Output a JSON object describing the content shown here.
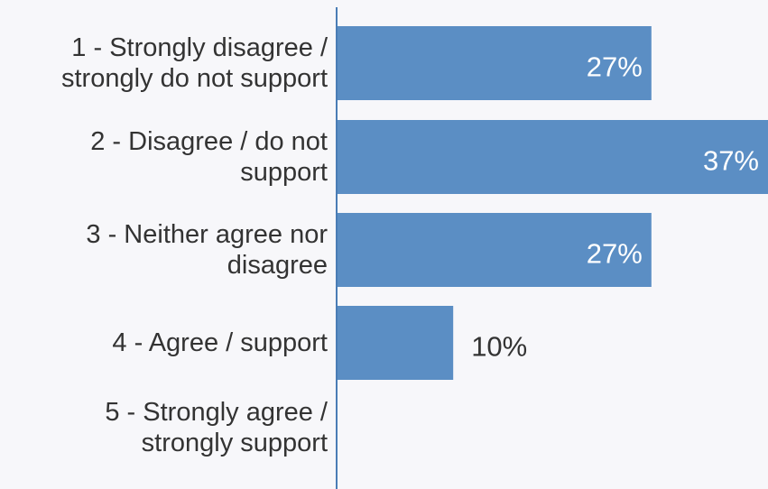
{
  "colors": {
    "bar": "#5b8ec4",
    "axis": "#4a7db5",
    "label_inside": "#ffffff",
    "label_outside": "#333333",
    "text": "#333333",
    "background": "#f7f7fa"
  },
  "chart_data": {
    "type": "bar",
    "orientation": "horizontal",
    "categories": [
      [
        "1 - Strongly disagree /",
        "strongly do not support"
      ],
      [
        "2 - Disagree / do not",
        "support"
      ],
      [
        "3 - Neither agree nor",
        "disagree"
      ],
      [
        "4 - Agree / support"
      ],
      [
        "5 - Strongly agree /",
        "strongly support"
      ]
    ],
    "values": [
      27,
      37,
      27,
      10,
      0
    ],
    "value_labels": [
      "27%",
      "37%",
      "27%",
      "10%",
      ""
    ],
    "xlim": [
      0,
      37
    ],
    "grid": false,
    "legend": "none"
  }
}
